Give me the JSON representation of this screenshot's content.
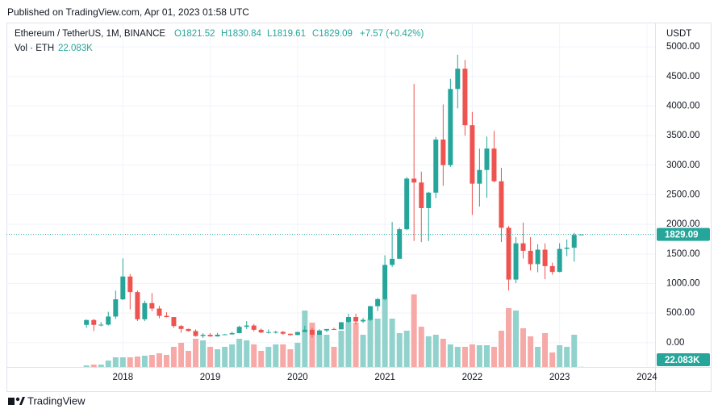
{
  "published": "Published on TradingView.com, Apr 01, 2023 01:58 UTC",
  "footer": "TradingView",
  "chart_data": {
    "type": "candlestick",
    "title": "Ethereum / TetherUS, 1M, BINANCE",
    "ohlc_labels": {
      "open": "O1821.52",
      "high": "H1830.84",
      "low": "L1819.61",
      "close": "C1829.09",
      "change": "+7.57 (+0.42%)"
    },
    "volume_title": "Vol · ETH",
    "volume_label": "22.083K",
    "currency": "USDT",
    "last_price_label": "1829.09",
    "up_color": "#26a69a",
    "down_color": "#ef5350",
    "volume_up_color": "#92d2cc",
    "volume_down_color": "#f7a9a7",
    "grid": true,
    "x": [
      2017.583,
      2017.667,
      2017.75,
      2017.833,
      2017.917,
      2018,
      2018.083,
      2018.167,
      2018.25,
      2018.333,
      2018.417,
      2018.5,
      2018.583,
      2018.667,
      2018.75,
      2018.833,
      2018.917,
      2019,
      2019.083,
      2019.167,
      2019.25,
      2019.333,
      2019.417,
      2019.5,
      2019.583,
      2019.667,
      2019.75,
      2019.833,
      2019.917,
      2020,
      2020.083,
      2020.167,
      2020.25,
      2020.333,
      2020.417,
      2020.5,
      2020.583,
      2020.667,
      2020.75,
      2020.833,
      2020.917,
      2021,
      2021.083,
      2021.167,
      2021.25,
      2021.333,
      2021.417,
      2021.5,
      2021.583,
      2021.667,
      2021.75,
      2021.833,
      2021.917,
      2022,
      2022.083,
      2022.167,
      2022.25,
      2022.333,
      2022.417,
      2022.5,
      2022.583,
      2022.667,
      2022.75,
      2022.833,
      2022.917,
      2023,
      2023.083,
      2023.167,
      2023.25
    ],
    "open": [
      301,
      383,
      301,
      305,
      442,
      733,
      1118,
      855,
      395,
      669,
      577,
      454,
      433,
      281,
      232,
      197,
      113,
      133,
      106,
      135,
      141,
      162,
      268,
      290,
      218,
      172,
      180,
      183,
      151,
      129,
      180,
      218,
      133,
      206,
      231,
      225,
      345,
      434,
      359,
      386,
      617,
      737,
      1314,
      1418,
      1918,
      2773,
      2707,
      2275,
      2536,
      3433,
      3001,
      4288,
      4631,
      3676,
      2688,
      2919,
      3281,
      2728,
      1942,
      1067,
      1679,
      1553,
      1328,
      1572,
      1294,
      1196,
      1585,
      1605,
      1821.52
    ],
    "high": [
      393,
      400,
      349,
      522,
      880,
      1424,
      1161,
      880,
      710,
      838,
      622,
      515,
      434,
      300,
      237,
      223,
      160,
      160,
      165,
      146,
      186,
      288,
      365,
      318,
      239,
      224,
      200,
      196,
      154,
      184,
      288,
      253,
      227,
      227,
      253,
      350,
      488,
      489,
      420,
      623,
      755,
      1476,
      2041,
      1943,
      2800,
      4372,
      2891,
      2551,
      3478,
      4027,
      4460,
      4868,
      4778,
      3900,
      3280,
      3483,
      3580,
      2955,
      1973,
      1785,
      2030,
      1785,
      1664,
      1679,
      1352,
      1680,
      1743,
      1857,
      1830.84
    ],
    "low": [
      250,
      197,
      276,
      290,
      400,
      720,
      563,
      366,
      365,
      530,
      413,
      427,
      250,
      167,
      188,
      101,
      81,
      100,
      102,
      129,
      137,
      157,
      231,
      189,
      163,
      153,
      154,
      131,
      117,
      126,
      180,
      86,
      131,
      176,
      215,
      224,
      335,
      308,
      332,
      365,
      535,
      714,
      1281,
      1431,
      1900,
      1719,
      1700,
      1718,
      2442,
      2651,
      2970,
      3960,
      3500,
      2159,
      2300,
      2450,
      2711,
      1700,
      881,
      1006,
      1422,
      1220,
      1190,
      1073,
      1150,
      1190,
      1461,
      1368,
      1819.61
    ],
    "close": [
      383,
      301,
      305,
      442,
      733,
      1118,
      855,
      395,
      669,
      577,
      454,
      433,
      281,
      232,
      197,
      113,
      133,
      106,
      135,
      141,
      162,
      268,
      290,
      218,
      172,
      180,
      183,
      151,
      129,
      180,
      218,
      133,
      206,
      231,
      225,
      345,
      434,
      359,
      386,
      617,
      737,
      1314,
      1418,
      1918,
      2773,
      2707,
      2275,
      2536,
      3433,
      3001,
      4288,
      4631,
      3676,
      2688,
      2919,
      3281,
      2728,
      1942,
      1067,
      1679,
      1553,
      1328,
      1572,
      1294,
      1196,
      1585,
      1605,
      1821.52,
      1829.09
    ],
    "volume": [
      200000,
      300000,
      300000,
      800000,
      1200000,
      1200000,
      1200000,
      1300000,
      1400000,
      1500000,
      1700000,
      1500000,
      2500000,
      3000000,
      2000000,
      3500000,
      3300000,
      2500000,
      2200000,
      2500000,
      2800000,
      3500000,
      3300000,
      2800000,
      2000000,
      2500000,
      2800000,
      2800000,
      2200000,
      3000000,
      7000000,
      5500000,
      4000000,
      4000000,
      2500000,
      4500000,
      5500000,
      5500000,
      4000000,
      6000000,
      6000000,
      8500000,
      6000000,
      4200000,
      4500000,
      9000000,
      5000000,
      3800000,
      4000000,
      3500000,
      2800000,
      2500000,
      2500000,
      2800000,
      2700000,
      2700000,
      2500000,
      4500000,
      7300000,
      7000000,
      4800000,
      3800000,
      2500000,
      4200000,
      1800000,
      2700000,
      2500000,
      4000000,
      22083
    ],
    "xlim": [
      2016.667,
      2024.093
    ],
    "xticks": [
      2018,
      2019,
      2020,
      2021,
      2022,
      2023,
      2024
    ],
    "ylim": [
      -411,
      5410
    ],
    "yticks": [
      {
        "value": 0,
        "label": "0.00"
      },
      {
        "value": 500,
        "label": "500.00"
      },
      {
        "value": 1000,
        "label": "1000.00"
      },
      {
        "value": 1500,
        "label": "1500.00"
      },
      {
        "value": 2000,
        "label": "2000.00"
      },
      {
        "value": 2500,
        "label": "2500.00"
      },
      {
        "value": 3000,
        "label": "3000.00"
      },
      {
        "value": 3500,
        "label": "3500.00"
      },
      {
        "value": 4000,
        "label": "4000.00"
      },
      {
        "value": 4500,
        "label": "4500.00"
      },
      {
        "value": 5000,
        "label": "5000.00"
      }
    ]
  }
}
